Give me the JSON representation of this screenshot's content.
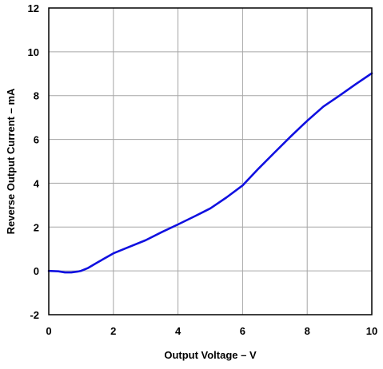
{
  "chart_data": {
    "type": "line",
    "title": "",
    "xlabel": "Output Voltage – V",
    "ylabel": "Reverse Output Current – mA",
    "xlim": [
      0,
      10
    ],
    "ylim": [
      -2,
      12
    ],
    "xticks": [
      0,
      2,
      4,
      6,
      8,
      10
    ],
    "yticks": [
      -2,
      0,
      2,
      4,
      6,
      8,
      10,
      12
    ],
    "grid": true,
    "legend": "none",
    "series": [
      {
        "color": "#1010e0",
        "x": [
          0,
          0.3,
          0.5,
          0.7,
          0.9,
          1.0,
          1.2,
          1.5,
          2.0,
          2.5,
          3.0,
          3.5,
          4.0,
          4.5,
          5.0,
          5.5,
          6.0,
          6.5,
          7.0,
          7.5,
          8.0,
          8.5,
          9.0,
          9.5,
          10.0
        ],
        "y": [
          0.0,
          -0.02,
          -0.07,
          -0.07,
          -0.03,
          0.0,
          0.12,
          0.38,
          0.8,
          1.1,
          1.4,
          1.77,
          2.12,
          2.48,
          2.85,
          3.35,
          3.9,
          4.68,
          5.42,
          6.15,
          6.85,
          7.5,
          8.0,
          8.52,
          9.02
        ]
      }
    ]
  }
}
